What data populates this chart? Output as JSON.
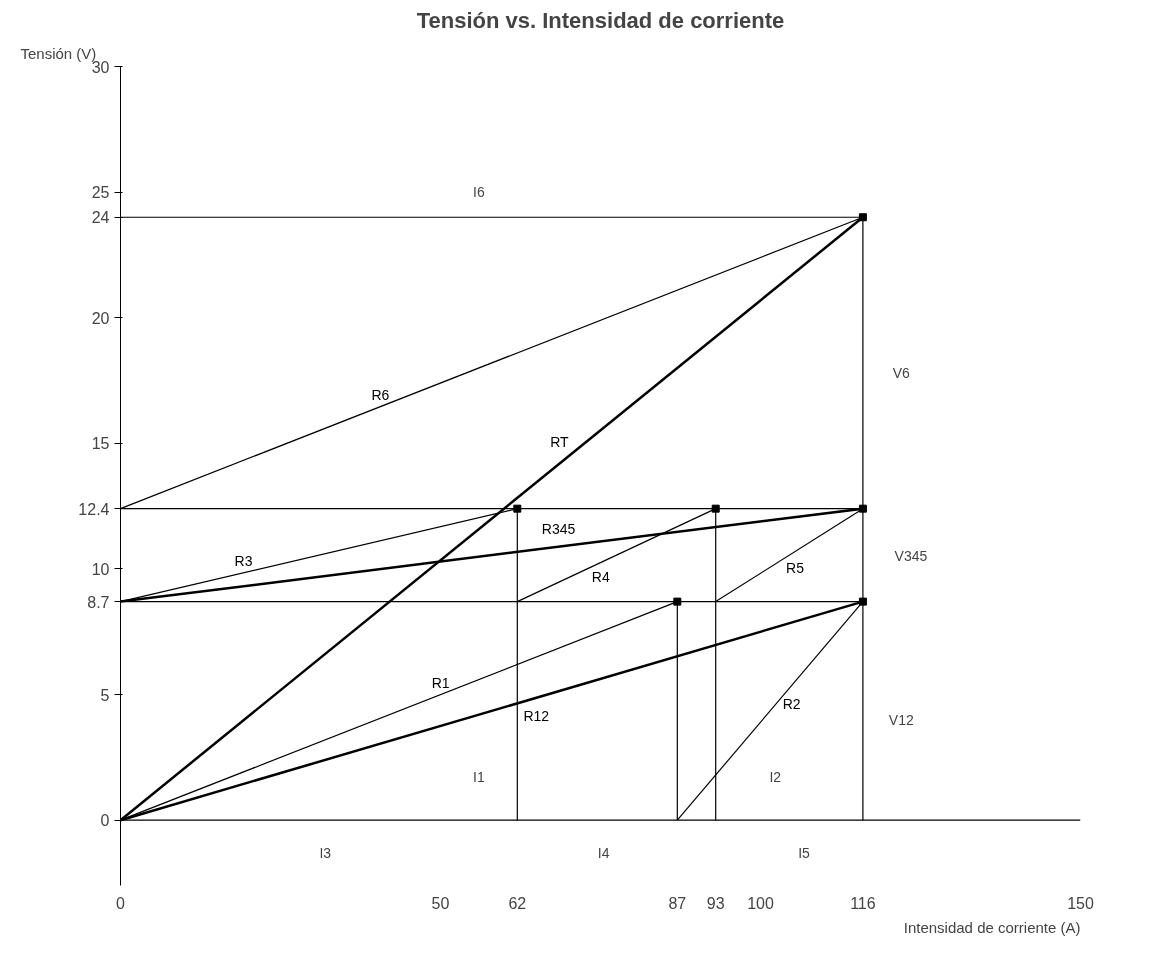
{
  "chart_data": {
    "type": "line",
    "title": "Tensión vs. Intensidad de corriente",
    "xlabel": "Intensidad de corriente (A)",
    "ylabel": "Tensión (V)",
    "xlim": [
      0,
      150
    ],
    "ylim": [
      -2.6,
      30
    ],
    "ref_lines": [
      {
        "axis": "y",
        "value": 0,
        "color": "#000000"
      }
    ],
    "xticks": [
      0,
      50,
      62,
      87,
      93,
      100,
      116,
      150
    ],
    "yticks": [
      0,
      5,
      8.7,
      10,
      12.4,
      15,
      20,
      24,
      25,
      30
    ],
    "grid": false,
    "line_style": "solid",
    "series": [
      {
        "name": "RT",
        "color": "#000000",
        "x": [
          0,
          116
        ],
        "values": [
          0,
          24
        ]
      },
      {
        "name": "R6",
        "color": "#000000",
        "x": [
          0,
          116
        ],
        "values": [
          12.4,
          24
        ]
      },
      {
        "name": "R3",
        "color": "#000000",
        "x": [
          0,
          62
        ],
        "values": [
          8.7,
          12.4
        ]
      },
      {
        "name": "R345",
        "color": "#000000",
        "x": [
          0,
          116
        ],
        "values": [
          8.7,
          12.4
        ]
      },
      {
        "name": "R4",
        "color": "#000000",
        "x": [
          62,
          93
        ],
        "values": [
          8.7,
          12.4
        ]
      },
      {
        "name": "R5",
        "color": "#000000",
        "x": [
          93,
          116
        ],
        "values": [
          8.7,
          12.4
        ]
      },
      {
        "name": "R1",
        "color": "#000000",
        "x": [
          0,
          87
        ],
        "values": [
          0,
          8.7
        ]
      },
      {
        "name": "R12",
        "color": "#000000",
        "x": [
          0,
          116
        ],
        "values": [
          0,
          8.7
        ]
      },
      {
        "name": "R2",
        "color": "#000000",
        "x": [
          87,
          116
        ],
        "values": [
          0,
          8.7
        ]
      },
      {
        "color": "#000000",
        "x": [
          0,
          116
        ],
        "values": [
          24,
          24
        ]
      },
      {
        "color": "#000000",
        "x": [
          0,
          116
        ],
        "values": [
          12.4,
          12.4
        ]
      },
      {
        "color": "#000000",
        "x": [
          0,
          116
        ],
        "values": [
          8.7,
          8.7
        ]
      },
      {
        "color": "#000000",
        "x": [
          62,
          62
        ],
        "values": [
          0,
          12.4
        ]
      },
      {
        "color": "#000000",
        "x": [
          87,
          87
        ],
        "values": [
          0,
          8.7
        ]
      },
      {
        "color": "#000000",
        "x": [
          93,
          93
        ],
        "values": [
          0,
          12.4
        ]
      },
      {
        "color": "#000000",
        "x": [
          116,
          116
        ],
        "values": [
          0,
          24
        ]
      },
      {
        "type": "scatter",
        "marker": "square",
        "color": "#000000",
        "x": [
          62,
          93,
          87,
          116,
          116,
          116
        ],
        "values": [
          12.4,
          12.4,
          8.7,
          8.7,
          12.4,
          24
        ]
      }
    ],
    "annotations": [
      "I6",
      "V6",
      "V345",
      "V12",
      "I1",
      "I2",
      "I3",
      "I4",
      "I5"
    ]
  }
}
